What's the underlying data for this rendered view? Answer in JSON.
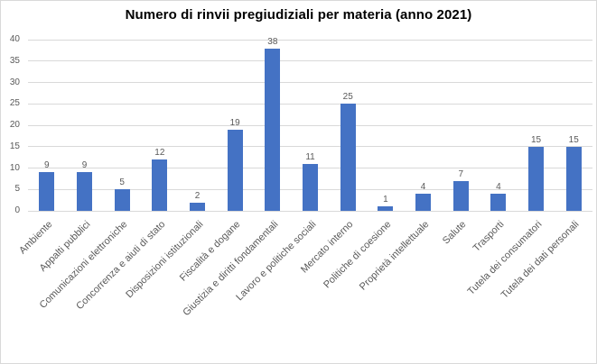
{
  "chart_data": {
    "type": "bar",
    "title": "Numero di rinvii pregiudiziali per materia (anno 2021)",
    "categories": [
      "Ambiente",
      "Appalti pubblici",
      "Comunicazioni elettroniche",
      "Concorrenza e aiuti di stato",
      "Disposizioni istituzionali",
      "Fiscalità e dogane",
      "Giustizia e diritti fondamentali",
      "Lavoro e politiche sociali",
      "Mercato interno",
      "Politiche di coesione",
      "Proprietà intellettuale",
      "Salute",
      "Trasporti",
      "Tutela dei consumatori",
      "Tutela dei dati personali"
    ],
    "values": [
      9,
      9,
      5,
      12,
      2,
      19,
      38,
      11,
      25,
      1,
      4,
      7,
      4,
      15,
      15
    ],
    "xlabel": "",
    "ylabel": "",
    "ylim": [
      0,
      40
    ],
    "yticks": [
      0,
      5,
      10,
      15,
      20,
      25,
      30,
      35,
      40
    ],
    "grid": true,
    "legend": false,
    "data_labels": true,
    "colors": {
      "bar": "#4472c4",
      "gridline": "#d9d9d9",
      "axis_text": "#595959",
      "title_text": "#000000",
      "border": "#d9d9d9"
    }
  }
}
